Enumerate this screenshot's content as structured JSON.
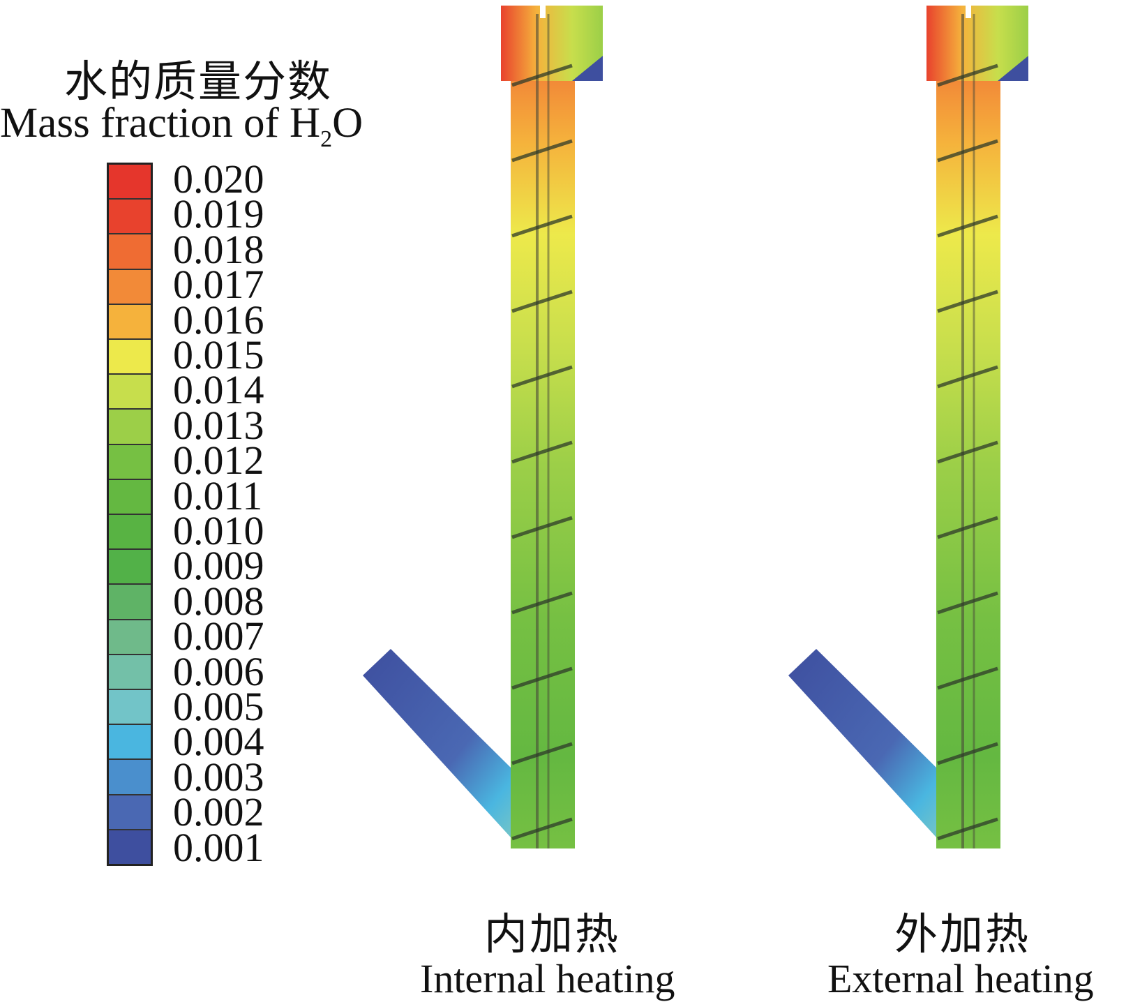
{
  "legend": {
    "title_cn": "水的质量分数",
    "title_en_main": "Mass fraction of H",
    "title_en_sub": "2",
    "title_en_tail": "O",
    "ticks": [
      "0.020",
      "0.019",
      "0.018",
      "0.017",
      "0.016",
      "0.015",
      "0.014",
      "0.013",
      "0.012",
      "0.011",
      "0.010",
      "0.009",
      "0.008",
      "0.007",
      "0.006",
      "0.005",
      "0.004",
      "0.003",
      "0.002",
      "0.001"
    ],
    "colors": [
      "#e5362c",
      "#e8422d",
      "#ef6c33",
      "#f28a38",
      "#f5b23c",
      "#ede94b",
      "#c7de4c",
      "#9ccf48",
      "#76c043",
      "#64b841",
      "#58b343",
      "#52b148",
      "#5fb366",
      "#6fba8a",
      "#73c0a8",
      "#72c4c8",
      "#4ab6e0",
      "#4a8fcd",
      "#4a68b3",
      "#3e4f9f"
    ],
    "scale_min": 0.001,
    "scale_max": 0.02
  },
  "panels": [
    {
      "cn": "内加热",
      "en": "Internal heating"
    },
    {
      "cn": "外加热",
      "en": "External heating"
    }
  ]
}
